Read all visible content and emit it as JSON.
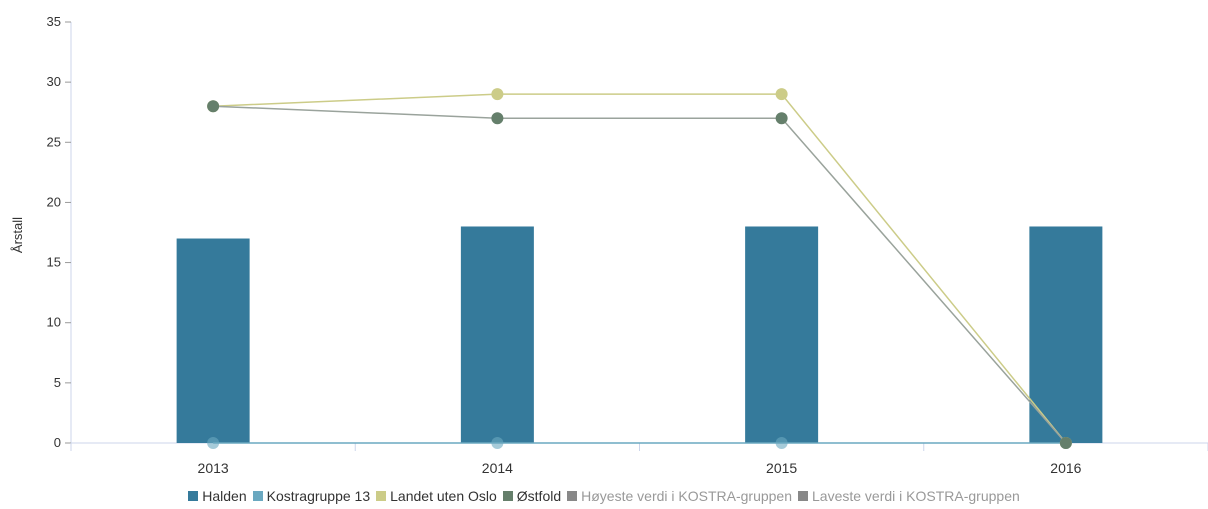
{
  "chart_data": {
    "type": "bar",
    "title": "",
    "ylabel": "Årstall",
    "xlabel": "",
    "ylim": [
      0,
      35
    ],
    "yticks": [
      0,
      5,
      10,
      15,
      20,
      25,
      30,
      35
    ],
    "categories": [
      "2013",
      "2014",
      "2015",
      "2016"
    ],
    "grid": false,
    "legend_position": "bottom",
    "series": [
      {
        "name": "Halden",
        "kind": "bar",
        "color": "#357a9b",
        "values": [
          17,
          18,
          18,
          18
        ]
      },
      {
        "name": "Kostragruppe 13",
        "kind": "line",
        "color": "#6aa8c0",
        "values": [
          0,
          0,
          0,
          0
        ]
      },
      {
        "name": "Landet uten Oslo",
        "kind": "line",
        "color": "#cccc88",
        "values": [
          28,
          29,
          29,
          0
        ]
      },
      {
        "name": "Østfold",
        "kind": "line",
        "color": "#657f6b",
        "values": [
          28,
          27,
          27,
          0
        ]
      },
      {
        "name": "Høyeste verdi i KOSTRA-gruppen",
        "kind": "line",
        "color": "#888888",
        "values": [
          null,
          null,
          null,
          null
        ],
        "hidden": true
      },
      {
        "name": "Laveste verdi i KOSTRA-gruppen",
        "kind": "line",
        "color": "#888888",
        "values": [
          null,
          null,
          null,
          null
        ],
        "hidden": true
      }
    ]
  }
}
